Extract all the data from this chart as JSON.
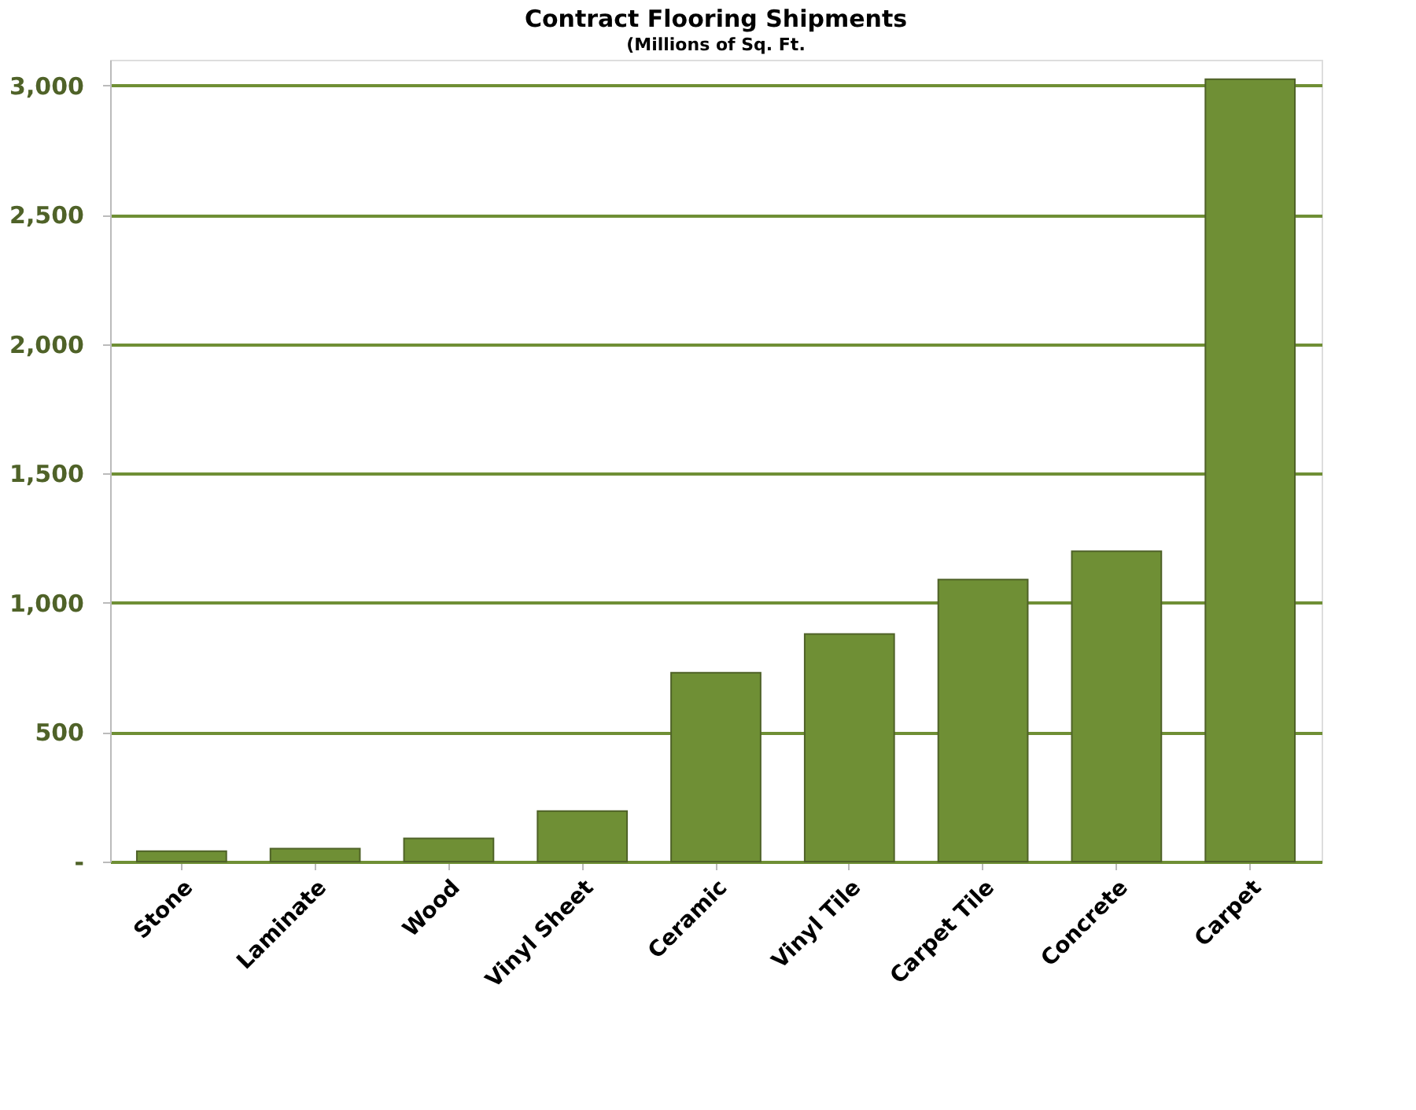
{
  "chart_data": {
    "type": "bar",
    "title": "Contract Flooring Shipments",
    "subtitle": "(Millions of Sq. Ft.",
    "categories": [
      "Stone",
      "Laminate",
      "Wood",
      "Vinyl Sheet",
      "Ceramic",
      "Vinyl Tile",
      "Carpet Tile",
      "Concrete",
      "Carpet"
    ],
    "values": [
      40,
      50,
      90,
      195,
      730,
      880,
      1090,
      1200,
      3025
    ],
    "color": "#6f8f35",
    "ylim": [
      0,
      3100
    ],
    "yticks": [
      {
        "value": 0,
        "label": "-"
      },
      500,
      {
        "value": 1000,
        "label": "1,000"
      },
      {
        "value": 1500,
        "label": "1,500"
      },
      {
        "value": 2000,
        "label": "2,000"
      },
      {
        "value": 2500,
        "label": "2,500"
      },
      {
        "value": 3000,
        "label": "3,000"
      }
    ],
    "grid": "y"
  }
}
